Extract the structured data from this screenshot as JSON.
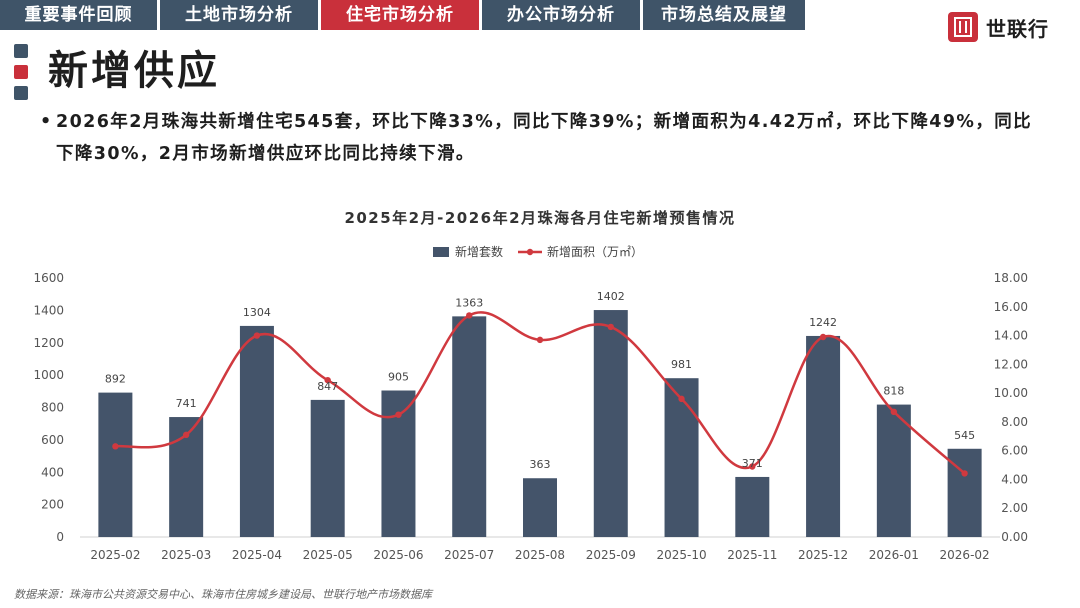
{
  "tabs": [
    {
      "label": "重要事件回顾",
      "active": false
    },
    {
      "label": "土地市场分析",
      "active": false
    },
    {
      "label": "住宅市场分析",
      "active": true
    },
    {
      "label": "办公市场分析",
      "active": false
    },
    {
      "label": "市场总结及展望",
      "active": false
    }
  ],
  "brand": {
    "name": "世联行"
  },
  "page": {
    "title": "新增供应",
    "summary": "2026年2月珠海共新增住宅545套，环比下降33%，同比下降39%；新增面积为4.42万㎡，环比下降49%，同比下降30%，2月市场新增供应环比同比持续下滑。",
    "bullet": "•"
  },
  "source": "数据来源：珠海市公共资源交易中心、珠海市住房城乡建设局、世联行地产市场数据库",
  "colors": {
    "bar": "#44546a",
    "line": "#d0393f",
    "accent": "#c9303b",
    "nav": "#3f5468"
  },
  "chart_data": {
    "type": "bar",
    "title": "2025年2月-2026年2月珠海各月住宅新增预售情况",
    "categories": [
      "2025-02",
      "2025-03",
      "2025-04",
      "2025-05",
      "2025-06",
      "2025-07",
      "2025-08",
      "2025-09",
      "2025-10",
      "2025-11",
      "2025-12",
      "2026-01",
      "2026-02"
    ],
    "series": [
      {
        "name": "新增套数",
        "type": "bar",
        "axis": "left",
        "values": [
          892,
          741,
          1304,
          847,
          905,
          1363,
          363,
          1402,
          981,
          371,
          1242,
          818,
          545
        ]
      },
      {
        "name": "新增面积（万㎡）",
        "type": "line",
        "axis": "right",
        "smooth": true,
        "values": [
          6.3,
          7.1,
          14.0,
          10.9,
          8.5,
          15.4,
          13.7,
          14.6,
          9.6,
          4.9,
          13.9,
          8.7,
          4.42
        ]
      }
    ],
    "y_left": {
      "min": 0,
      "max": 1600,
      "step": 200,
      "ticks": [
        "0",
        "200",
        "400",
        "600",
        "800",
        "1000",
        "1200",
        "1400",
        "1600"
      ]
    },
    "y_right": {
      "min": 0,
      "max": 18,
      "step": 2,
      "ticks": [
        "0.00",
        "2.00",
        "4.00",
        "6.00",
        "8.00",
        "10.00",
        "12.00",
        "14.00",
        "16.00",
        "18.00"
      ]
    },
    "legend": "top-center",
    "grid": false
  }
}
